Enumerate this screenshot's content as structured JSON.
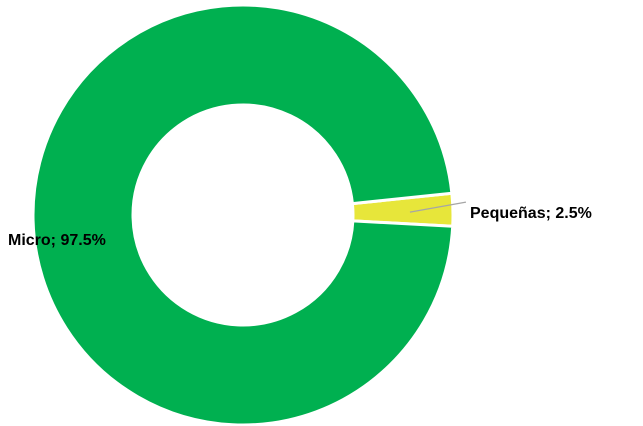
{
  "chart_data": {
    "type": "pie",
    "donut": true,
    "title": "",
    "categories": [
      "Micro",
      "Pequeñas"
    ],
    "values": [
      97.5,
      2.5
    ],
    "labels": [
      "Micro; 97.5%",
      "Pequeñas; 2.5%"
    ],
    "colors": [
      "#00b050",
      "#e7e63a"
    ],
    "legend": "none"
  }
}
